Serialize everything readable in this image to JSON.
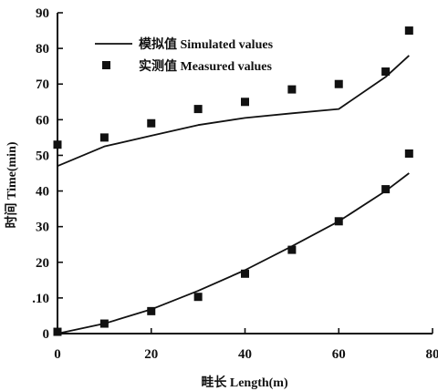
{
  "chart_data": {
    "type": "line",
    "xlabel": "畦长 Length(m)",
    "ylabel": "时间 Time(min)",
    "xlim": [
      0,
      80
    ],
    "ylim": [
      0,
      90
    ],
    "xticks": [
      "0",
      "20",
      "40",
      "60",
      "80"
    ],
    "yticks": [
      "0",
      ".10",
      "20",
      "30",
      "40",
      "50",
      "60",
      "70",
      "80",
      "90"
    ],
    "grid": false,
    "legend_position": "top-left",
    "series": [
      {
        "name": "模拟值 Simulated values",
        "style": "line",
        "group": "upper",
        "x": [
          0,
          10,
          20,
          30,
          40,
          50,
          60,
          70,
          75
        ],
        "y": [
          47,
          52.5,
          55.5,
          58.5,
          60.5,
          61.8,
          63,
          72,
          78
        ]
      },
      {
        "name": "模拟值 Simulated values",
        "style": "line",
        "group": "lower",
        "x": [
          0,
          10,
          20,
          30,
          40,
          50,
          60,
          70,
          75
        ],
        "y": [
          0,
          2.8,
          6.8,
          12,
          17.8,
          24.5,
          31.5,
          40,
          45
        ]
      },
      {
        "name": "实测值 Measured values",
        "style": "markers",
        "group": "upper",
        "x": [
          0,
          10,
          20,
          30,
          40,
          50,
          60,
          70,
          75
        ],
        "y": [
          53,
          55,
          59,
          63,
          65,
          68.5,
          70,
          73.5,
          85
        ]
      },
      {
        "name": "实测值 Measured values",
        "style": "markers",
        "group": "lower",
        "x": [
          0,
          10,
          20,
          30,
          40,
          50,
          60,
          70,
          75
        ],
        "y": [
          0.5,
          2.8,
          6.3,
          10.3,
          16.8,
          23.5,
          31.5,
          40.5,
          50.5
        ]
      }
    ],
    "legend": [
      {
        "label": "模拟值 Simulated values",
        "symbol": "line"
      },
      {
        "label": "实测值 Measured values",
        "symbol": "square"
      }
    ],
    "colors": {
      "ink": "#111111",
      "background": "#ffffff"
    }
  }
}
